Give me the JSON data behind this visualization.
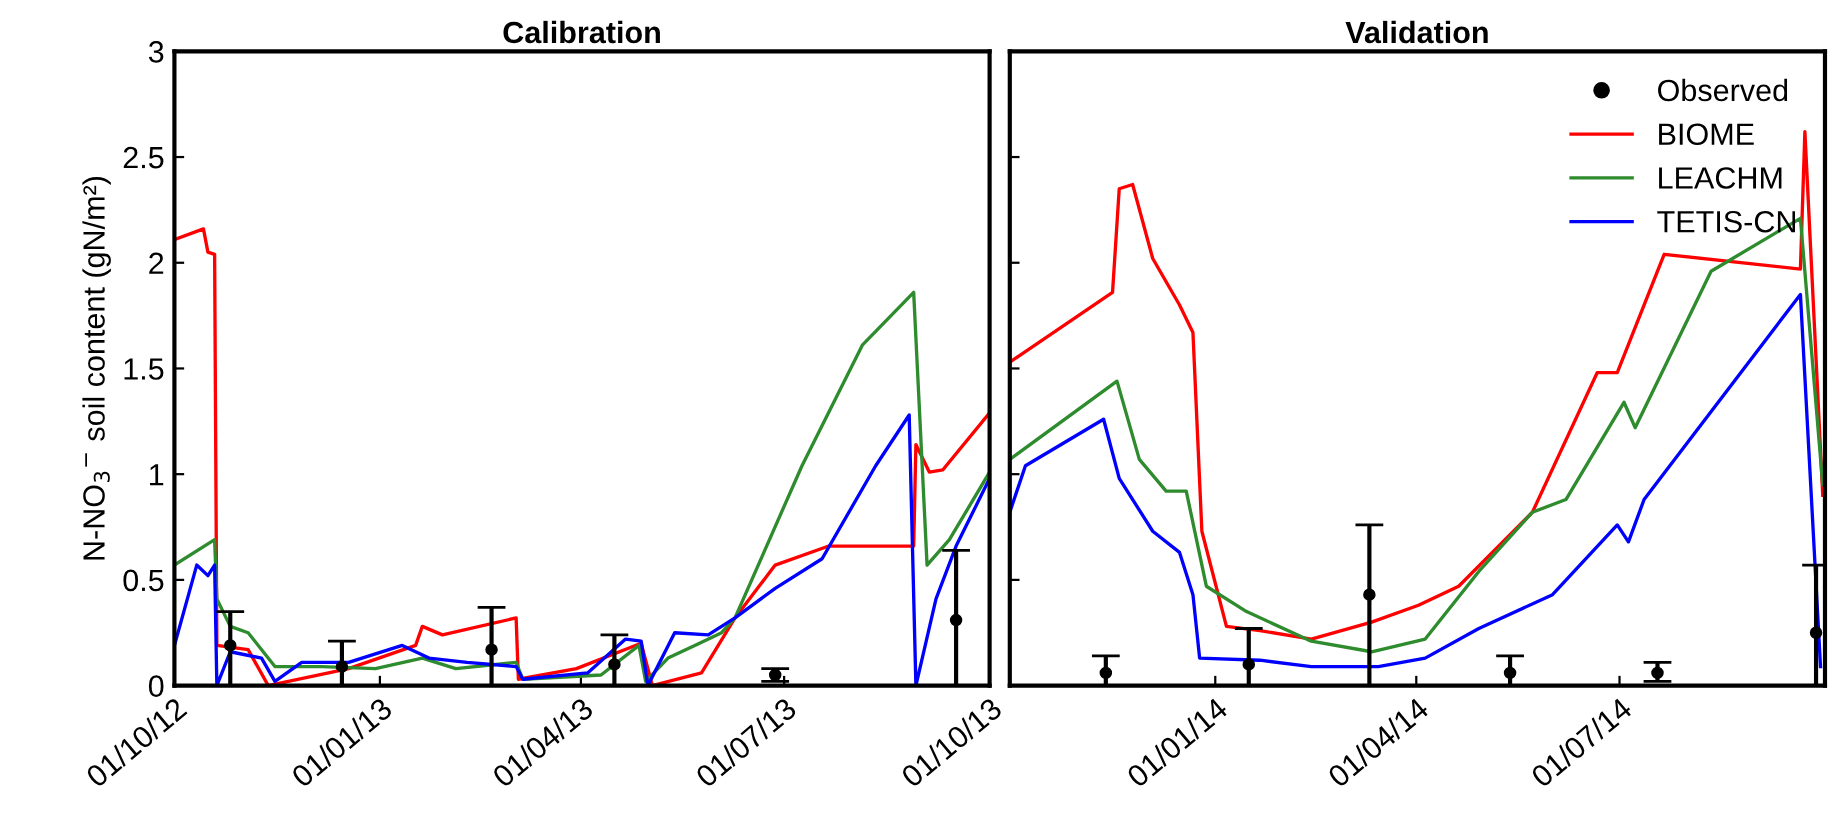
{
  "chart_data": [
    {
      "type": "line",
      "title": "Calibration",
      "ylabel": "N-NO$_{3}$$^{−}$ soil content (gN/m²)",
      "xlim": [
        "2012-10-01",
        "2013-10-01"
      ],
      "ylim": [
        0,
        3
      ],
      "yticks": [
        0,
        0.5,
        1,
        1.5,
        2,
        2.5,
        3
      ],
      "xticks": [
        {
          "value": "2012-10-01",
          "label": "01/10/12"
        },
        {
          "value": "2013-01-01",
          "label": "01/01/13"
        },
        {
          "value": "2013-04-01",
          "label": "01/04/13"
        },
        {
          "value": "2013-07-01",
          "label": "01/07/13"
        },
        {
          "value": "2013-10-01",
          "label": "01/10/13"
        }
      ],
      "grid": false,
      "legend": false,
      "marker": "none",
      "line_style": "solid",
      "series": [
        {
          "type": "scatter",
          "color": "#000000",
          "marker": "circle",
          "x": [
            "2012-10-26",
            "2012-12-15",
            "2013-02-20",
            "2013-04-16",
            "2013-06-27",
            "2013-09-16"
          ],
          "values": [
            0.19,
            0.09,
            0.17,
            0.1,
            0.05,
            0.31
          ],
          "errors": [
            [
              0,
              0.35
            ],
            [
              0,
              0.21
            ],
            [
              0,
              0.37
            ],
            [
              0,
              0.24
            ],
            [
              0.02,
              0.08
            ],
            [
              0,
              0.64
            ]
          ]
        },
        {
          "color": "#ff0000",
          "x": [
            "2012-10-01",
            "2012-10-14",
            "2012-10-16",
            "2012-10-19",
            "2012-10-20",
            "2012-11-03",
            "2012-11-12",
            "2012-12-18",
            "2013-01-17",
            "2013-01-20",
            "2013-01-29",
            "2013-03-03",
            "2013-03-04",
            "2013-03-30",
            "2013-04-28",
            "2013-05-03",
            "2013-05-25",
            "2013-06-09",
            "2013-06-27",
            "2013-07-21",
            "2013-08-28",
            "2013-08-29",
            "2013-09-04",
            "2013-09-10",
            "2013-10-01"
          ],
          "values": [
            2.11,
            2.16,
            2.05,
            2.04,
            0.19,
            0.17,
            0.0,
            0.08,
            0.19,
            0.28,
            0.24,
            0.32,
            0.03,
            0.08,
            0.2,
            0.0,
            0.06,
            0.32,
            0.57,
            0.66,
            0.66,
            1.14,
            1.01,
            1.02,
            1.29
          ]
        },
        {
          "color": "#2e8b2e",
          "x": [
            "2012-10-01",
            "2012-10-19",
            "2012-10-20",
            "2012-10-26",
            "2012-11-03",
            "2012-11-15",
            "2012-12-06",
            "2012-12-30",
            "2013-01-20",
            "2013-02-04",
            "2013-03-03",
            "2013-03-06",
            "2013-04-10",
            "2013-04-27",
            "2013-04-30",
            "2013-05-10",
            "2013-05-22",
            "2013-06-03",
            "2013-06-09",
            "2013-07-09",
            "2013-08-05",
            "2013-08-28",
            "2013-09-03",
            "2013-09-13",
            "2013-10-01"
          ],
          "values": [
            0.57,
            0.69,
            0.41,
            0.28,
            0.25,
            0.09,
            0.09,
            0.08,
            0.13,
            0.08,
            0.11,
            0.03,
            0.05,
            0.19,
            0.02,
            0.13,
            0.19,
            0.25,
            0.32,
            1.04,
            1.61,
            1.86,
            0.57,
            0.69,
            1.01
          ]
        },
        {
          "color": "#0000ff",
          "x": [
            "2012-10-01",
            "2012-10-11",
            "2012-10-16",
            "2012-10-19",
            "2012-10-20",
            "2012-10-26",
            "2012-11-09",
            "2012-11-15",
            "2012-11-27",
            "2012-12-18",
            "2013-01-11",
            "2013-01-23",
            "2013-02-09",
            "2013-03-03",
            "2013-03-06",
            "2013-04-04",
            "2013-04-21",
            "2013-04-28",
            "2013-05-01",
            "2013-05-13",
            "2013-05-28",
            "2013-06-09",
            "2013-06-27",
            "2013-07-18",
            "2013-08-11",
            "2013-08-26",
            "2013-08-29",
            "2013-09-07",
            "2013-09-16",
            "2013-10-01"
          ],
          "values": [
            0.19,
            0.57,
            0.52,
            0.57,
            0.0,
            0.16,
            0.13,
            0.02,
            0.11,
            0.11,
            0.19,
            0.13,
            0.11,
            0.09,
            0.03,
            0.06,
            0.22,
            0.21,
            0.0,
            0.25,
            0.24,
            0.32,
            0.46,
            0.6,
            1.04,
            1.28,
            0.0,
            0.41,
            0.66,
            0.98
          ]
        }
      ]
    },
    {
      "type": "line",
      "title": "Validation",
      "xlim": [
        "2013-10-01",
        "2014-10-01"
      ],
      "ylim": [
        0,
        3
      ],
      "yticks": [
        0,
        0.5,
        1,
        1.5,
        2,
        2.5,
        3
      ],
      "tick_labels": "x",
      "xticks": [
        {
          "value": "2014-01-01",
          "label": "01/01/14"
        },
        {
          "value": "2014-04-01",
          "label": "01/04/14"
        },
        {
          "value": "2014-07-01",
          "label": "01/07/14"
        }
      ],
      "grid": false,
      "legend": "top right",
      "marker": "none",
      "line_style": "solid",
      "series": [
        {
          "type": "scatter",
          "name": "Observed",
          "color": "#000000",
          "marker": "circle",
          "x": [
            "2013-11-13",
            "2014-01-16",
            "2014-03-11",
            "2014-05-13",
            "2014-07-18",
            "2014-09-27"
          ],
          "values": [
            0.06,
            0.1,
            0.43,
            0.06,
            0.06,
            0.25
          ],
          "errors": [
            [
              0,
              0.14
            ],
            [
              0,
              0.27
            ],
            [
              0,
              0.76
            ],
            [
              0,
              0.14
            ],
            [
              0.02,
              0.11
            ],
            [
              0,
              0.57
            ]
          ]
        },
        {
          "name": "BIOME",
          "color": "#ff0000",
          "x": [
            "2013-10-01",
            "2013-11-16",
            "2013-11-19",
            "2013-11-25",
            "2013-12-04",
            "2013-12-16",
            "2013-12-22",
            "2013-12-26",
            "2014-01-06",
            "2014-01-21",
            "2014-02-13",
            "2014-03-12",
            "2014-04-02",
            "2014-04-20",
            "2014-05-23",
            "2014-06-21",
            "2014-06-30",
            "2014-07-21",
            "2014-09-20",
            "2014-09-22",
            "2014-09-30"
          ],
          "values": [
            1.53,
            1.86,
            2.35,
            2.37,
            2.02,
            1.8,
            1.67,
            0.73,
            0.28,
            0.26,
            0.22,
            0.3,
            0.38,
            0.47,
            0.82,
            1.48,
            1.48,
            2.04,
            1.97,
            2.62,
            0.9
          ]
        },
        {
          "name": "LEACHM",
          "color": "#2e8b2e",
          "x": [
            "2013-10-01",
            "2013-11-18",
            "2013-11-28",
            "2013-12-10",
            "2013-12-19",
            "2013-12-28",
            "2014-01-15",
            "2014-02-13",
            "2014-03-12",
            "2014-04-05",
            "2014-04-29",
            "2014-05-23",
            "2014-06-07",
            "2014-07-03",
            "2014-07-08",
            "2014-08-11",
            "2014-09-20",
            "2014-09-30"
          ],
          "values": [
            1.07,
            1.44,
            1.07,
            0.92,
            0.92,
            0.47,
            0.35,
            0.21,
            0.16,
            0.22,
            0.54,
            0.82,
            0.88,
            1.34,
            1.22,
            1.96,
            2.21,
            0.95
          ]
        },
        {
          "name": "TETIS-CN",
          "color": "#0000ff",
          "x": [
            "2013-10-01",
            "2013-10-08",
            "2013-11-12",
            "2013-11-19",
            "2013-12-04",
            "2013-12-16",
            "2013-12-22",
            "2013-12-25",
            "2014-01-21",
            "2014-02-13",
            "2014-03-15",
            "2014-04-05",
            "2014-04-29",
            "2014-06-01",
            "2014-06-30",
            "2014-07-05",
            "2014-07-12",
            "2014-09-20",
            "2014-09-29"
          ],
          "values": [
            0.82,
            1.04,
            1.26,
            0.98,
            0.73,
            0.63,
            0.43,
            0.13,
            0.12,
            0.09,
            0.09,
            0.13,
            0.27,
            0.43,
            0.76,
            0.68,
            0.88,
            1.85,
            0.09
          ]
        }
      ]
    }
  ]
}
